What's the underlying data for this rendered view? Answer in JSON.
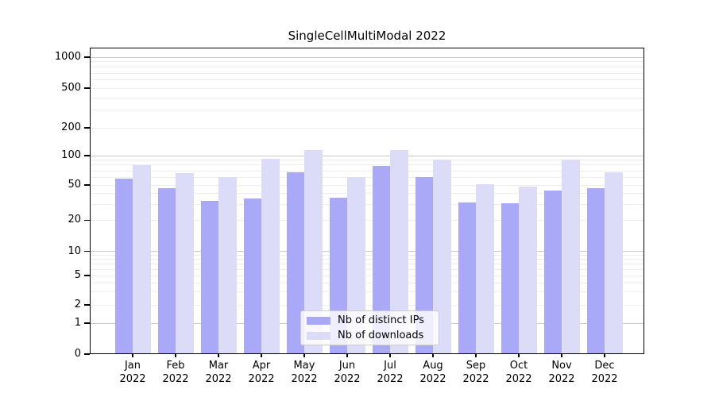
{
  "chart_data": {
    "type": "bar",
    "title": "SingleCellMultiModal 2022",
    "categories": [
      "Jan",
      "Feb",
      "Mar",
      "Apr",
      "May",
      "Jun",
      "Jul",
      "Aug",
      "Sep",
      "Oct",
      "Nov",
      "Dec"
    ],
    "year_label": "2022",
    "series": [
      {
        "name": "Nb of distinct IPs",
        "color": "#a9a9f7",
        "values": [
          58,
          46,
          33,
          35,
          67,
          36,
          78,
          60,
          32,
          31,
          43,
          46
        ]
      },
      {
        "name": "Nb of downloads",
        "color": "#dcdcf8",
        "values": [
          80,
          66,
          60,
          93,
          115,
          60,
          115,
          91,
          51,
          48,
          91,
          67
        ]
      }
    ],
    "y_tick_labels": [
      "0",
      "1",
      "2",
      "5",
      "10",
      "20",
      "50",
      "100",
      "200",
      "500",
      "1000"
    ],
    "y_scale": "log-like with 0 baseline (decades 1-10-100-1000)",
    "ylim": [
      0,
      1250
    ],
    "grid": "horizontal only: major lines at 1,10,100,1000 (darker), minor lines at 2-9 per decade (light)",
    "legend": {
      "position": "lower center",
      "entries": [
        "Nb of distinct IPs",
        "Nb of downloads"
      ]
    }
  },
  "colors": {
    "bar_distinct_ips": "#a9a9f7",
    "bar_downloads": "#dcdcf8",
    "major_grid": "#c9c9c9",
    "minor_grid": "#eeeeee",
    "axis": "#000000",
    "legend_border": "#cccccc"
  }
}
